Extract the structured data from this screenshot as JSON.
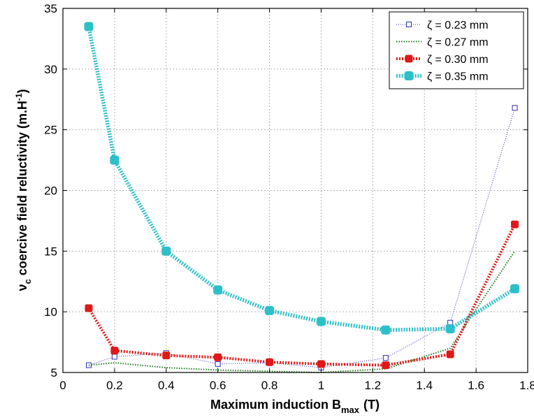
{
  "chart_data": {
    "type": "line",
    "xlabel": "Maximum induction B",
    "xlabel_sub": "max",
    "xlabel_unit": "(T)",
    "ylabel": "ν",
    "ylabel_sub": "c",
    "ylabel_rest": " coercive field reluctivity (m.H",
    "ylabel_sup": "-1",
    "ylabel_end": ")",
    "xlim": [
      0,
      1.8
    ],
    "ylim": [
      5,
      35
    ],
    "xticks": [
      0,
      0.2,
      0.4,
      0.6,
      0.8,
      1,
      1.2,
      1.4,
      1.6,
      1.8
    ],
    "xtick_labels": [
      "0",
      "0.2",
      "0.4",
      "0.6",
      "0.8",
      "1",
      "1.2",
      "1.4",
      "1.6",
      "1.8"
    ],
    "yticks": [
      5,
      10,
      15,
      20,
      25,
      30,
      35
    ],
    "ytick_labels": [
      "5",
      "10",
      "15",
      "20",
      "25",
      "30",
      "35"
    ],
    "grid": true,
    "legend_position": "top-right",
    "series": [
      {
        "name": "ζ = 0.23 mm",
        "color": "#2b2bb0",
        "marker": "open-square",
        "line": "thin-dotted",
        "x": [
          0.1,
          0.2,
          0.4,
          0.6,
          0.8,
          1.0,
          1.25,
          1.5,
          1.75
        ],
        "y": [
          5.6,
          6.3,
          6.6,
          5.7,
          5.8,
          5.4,
          6.2,
          9.1,
          26.8
        ]
      },
      {
        "name": "ζ = 0.27 mm",
        "color": "#1a7a1a",
        "marker": "none",
        "line": "dotted",
        "x": [
          0.1,
          0.2,
          0.4,
          0.6,
          0.8,
          1.0,
          1.25,
          1.5,
          1.75
        ],
        "y": [
          5.6,
          5.8,
          5.4,
          5.2,
          5.1,
          5.0,
          5.3,
          7.0,
          15.0
        ]
      },
      {
        "name": "ζ = 0.30 mm",
        "color": "#e01818",
        "marker": "filled-square",
        "line": "thick-dotted",
        "x": [
          0.1,
          0.2,
          0.4,
          0.6,
          0.8,
          1.0,
          1.25,
          1.5,
          1.75
        ],
        "y": [
          10.3,
          6.8,
          6.4,
          6.25,
          5.85,
          5.7,
          5.6,
          6.5,
          17.2
        ]
      },
      {
        "name": "ζ = 0.35 mm",
        "color": "#2ec0c8",
        "marker": "filled-square-large",
        "line": "very-thick-dotted",
        "x": [
          0.1,
          0.2,
          0.4,
          0.6,
          0.8,
          1.0,
          1.25,
          1.5,
          1.75
        ],
        "y": [
          33.5,
          22.5,
          15.0,
          11.8,
          10.1,
          9.2,
          8.5,
          8.6,
          11.9
        ]
      }
    ]
  }
}
